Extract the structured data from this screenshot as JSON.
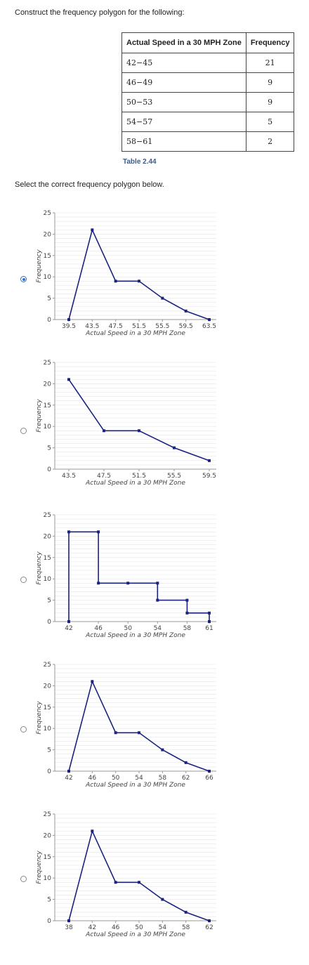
{
  "question": "Construct the frequency polygon for the following:",
  "table": {
    "headers": [
      "Actual Speed in a 30 MPH Zone",
      "Frequency"
    ],
    "rows": [
      [
        "42−45",
        "21"
      ],
      [
        "46−49",
        "9"
      ],
      [
        "50−53",
        "9"
      ],
      [
        "54−57",
        "5"
      ],
      [
        "58−61",
        "2"
      ]
    ],
    "caption": "Table 2.44"
  },
  "prompt": "Select the correct frequency polygon below.",
  "selected_option": 0,
  "colors": {
    "line": "#1a237e",
    "grid": "#e6e6e6",
    "axis": "#999999",
    "radio_selected": "#2a6fd6"
  },
  "chart_data": [
    {
      "type": "line",
      "xlabel": "Actual Speed in a 30 MPH Zone",
      "ylabel": "Frequency",
      "ylim": [
        0,
        25
      ],
      "yticks": [
        "0",
        "5",
        "10",
        "15",
        "20",
        "25"
      ],
      "xticks": [
        "39.5",
        "43.5",
        "47.5",
        "51.5",
        "55.5",
        "59.5",
        "63.5"
      ],
      "x": [
        39.5,
        43.5,
        47.5,
        51.5,
        55.5,
        59.5,
        63.5
      ],
      "y": [
        0,
        21,
        9,
        9,
        5,
        2,
        0
      ],
      "xlim": [
        39.5,
        63.5
      ]
    },
    {
      "type": "line",
      "xlabel": "Actual Speed in a 30 MPH Zone",
      "ylabel": "Frequency",
      "ylim": [
        0,
        25
      ],
      "yticks": [
        "0",
        "5",
        "10",
        "15",
        "20",
        "25"
      ],
      "xticks": [
        "43.5",
        "47.5",
        "51.5",
        "55.5",
        "59.5"
      ],
      "x": [
        43.5,
        47.5,
        51.5,
        55.5,
        59.5
      ],
      "y": [
        21,
        9,
        9,
        5,
        2
      ],
      "xlim": [
        43.5,
        59.5
      ]
    },
    {
      "type": "line",
      "xlabel": "Actual Speed in a 30 MPH Zone",
      "ylabel": "Frequency",
      "ylim": [
        0,
        25
      ],
      "yticks": [
        "0",
        "5",
        "10",
        "15",
        "20",
        "25"
      ],
      "xticks": [
        "42",
        "46",
        "50",
        "54",
        "58",
        "61"
      ],
      "x": [
        42,
        42,
        46,
        46,
        50,
        54,
        54,
        58,
        58,
        61,
        61
      ],
      "y": [
        0,
        21,
        21,
        9,
        9,
        9,
        5,
        5,
        2,
        2,
        0
      ],
      "xlim": [
        42,
        61
      ]
    },
    {
      "type": "line",
      "xlabel": "Actual Speed in a 30 MPH Zone",
      "ylabel": "Frequency",
      "ylim": [
        0,
        25
      ],
      "yticks": [
        "0",
        "5",
        "10",
        "15",
        "20",
        "25"
      ],
      "xticks": [
        "42",
        "46",
        "50",
        "54",
        "58",
        "62",
        "66"
      ],
      "x": [
        42,
        46,
        50,
        54,
        58,
        62,
        66
      ],
      "y": [
        0,
        21,
        9,
        9,
        5,
        2,
        0
      ],
      "xlim": [
        42,
        66
      ]
    },
    {
      "type": "line",
      "xlabel": "Actual Speed in a 30 MPH Zone",
      "ylabel": "Frequency",
      "ylim": [
        0,
        25
      ],
      "yticks": [
        "0",
        "5",
        "10",
        "15",
        "20",
        "25"
      ],
      "xticks": [
        "38",
        "42",
        "46",
        "50",
        "54",
        "58",
        "62"
      ],
      "x": [
        38,
        42,
        46,
        50,
        54,
        58,
        62
      ],
      "y": [
        0,
        21,
        9,
        9,
        5,
        2,
        0
      ],
      "xlim": [
        38,
        62
      ]
    }
  ]
}
